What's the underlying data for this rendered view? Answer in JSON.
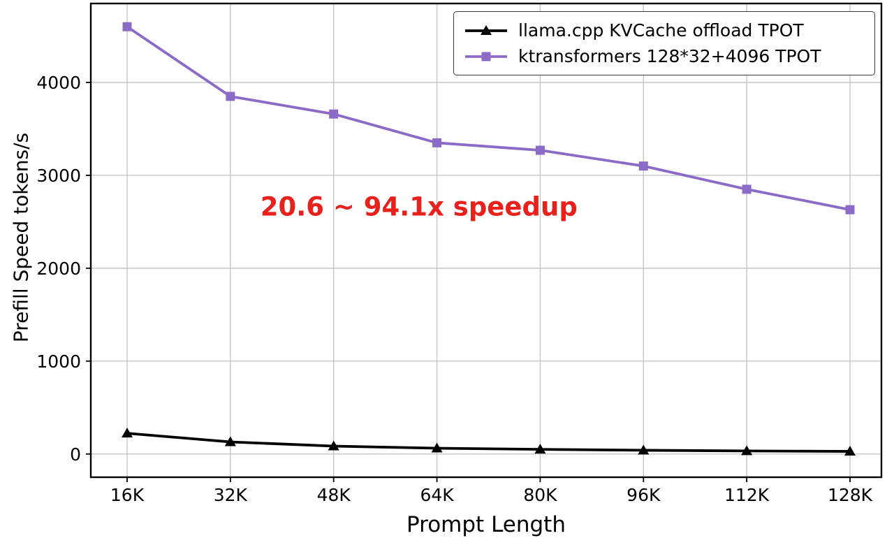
{
  "chart_data": {
    "type": "line",
    "title": "",
    "xlabel": "Prompt Length",
    "ylabel": "Prefill Speed tokens/s",
    "categories": [
      "16K",
      "32K",
      "48K",
      "64K",
      "80K",
      "96K",
      "112K",
      "128K"
    ],
    "series": [
      {
        "name": "llama.cpp KVCache offload TPOT",
        "color": "#000000",
        "marker": "triangle",
        "values": [
          223,
          130,
          85,
          62,
          50,
          40,
          33,
          28
        ]
      },
      {
        "name": "ktransformers 128*32+4096 TPOT",
        "color": "#8b6bc7",
        "marker": "square",
        "values": [
          4600,
          3850,
          3660,
          3350,
          3270,
          3100,
          2850,
          2630
        ]
      }
    ],
    "yticks": [
      0,
      1000,
      2000,
      3000,
      4000
    ],
    "ylim": [
      -250,
      4850
    ],
    "grid": true,
    "legend_position": "top-right",
    "annotation": {
      "text": "20.6 ~ 94.1x speedup",
      "color": "#e8211d",
      "x_frac": 0.415,
      "y_value": 2660
    }
  }
}
